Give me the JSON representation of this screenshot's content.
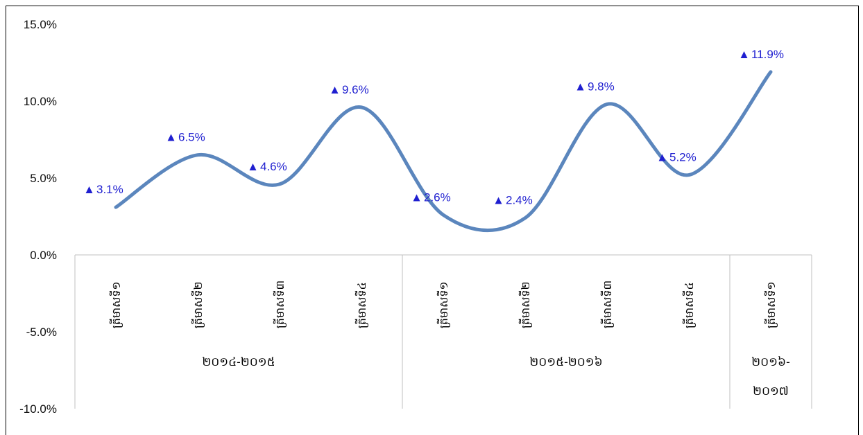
{
  "chart_data": {
    "type": "line",
    "smooth": true,
    "ylim": [
      -10,
      15
    ],
    "yticks": [
      "15.0%",
      "10.0%",
      "5.0%",
      "0.0%",
      "-5.0%",
      "-10.0%"
    ],
    "categories": [
      "ត្រីមាសទី១",
      "ត្រីមាសទី២",
      "ត្រីមាសទី៣",
      "ត្រីមាសទី៤",
      "ត្រីមាសទី១",
      "ត្រីមាសទី២",
      "ត្រីមាសទី៣",
      "ត្រីមាសទី៤",
      "ត្រីមាសទី១"
    ],
    "groups": [
      {
        "label": "២០១៤-២០១៥",
        "count": 4
      },
      {
        "label": "២០១៥-២០១៦",
        "count": 4
      },
      {
        "label": "២០១៦-២០១៧",
        "count": 1
      }
    ],
    "series": [
      {
        "values": [
          3.1,
          6.5,
          4.6,
          9.6,
          2.6,
          2.4,
          9.8,
          5.2,
          11.9
        ],
        "labels": [
          "3.1%",
          "6.5%",
          "4.6%",
          "9.6%",
          "2.6%",
          "2.4%",
          "9.8%",
          "5.2%",
          "11.9%"
        ],
        "color": "#5b86bd",
        "marker": "▲",
        "marker_color": "#1f1fd0"
      }
    ],
    "grid": false,
    "legend": "none"
  }
}
